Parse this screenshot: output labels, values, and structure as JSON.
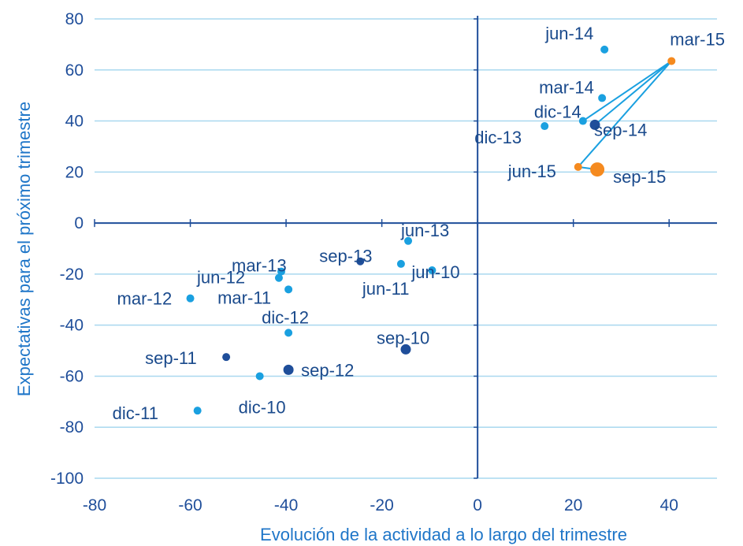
{
  "chart_data": {
    "type": "scatter",
    "xlabel": "Evolución  de la actividad a lo largo del trimestre",
    "ylabel": "Expectativas para el próximo trimestre",
    "xlim": [
      -80,
      50
    ],
    "ylim": [
      -100,
      80
    ],
    "xticks": [
      "-80",
      "-60",
      "-40",
      "-20",
      "0",
      "20",
      "40"
    ],
    "xtick_values": [
      -80,
      -60,
      -40,
      -20,
      0,
      20,
      40
    ],
    "yticks": [
      "80",
      "60",
      "40",
      "20",
      "0",
      "-20",
      "-40",
      "-60",
      "-80",
      "-100"
    ],
    "ytick_values": [
      80,
      60,
      40,
      20,
      0,
      -20,
      -40,
      -60,
      -80,
      -100
    ],
    "grid": "horizontal",
    "colors": {
      "light": "#1aa0e0",
      "dark": "#1f4e9a",
      "orange": "#f58a1f",
      "line": "#1aa0e0",
      "grid": "#a9d8ef",
      "axis": "#1f4e9a"
    },
    "points": [
      {
        "label": "jun-10",
        "x": -9.5,
        "y": -18.5,
        "color": "light"
      },
      {
        "label": "sep-10",
        "x": -15,
        "y": -49.5,
        "color": "dark",
        "large": true
      },
      {
        "label": "dic-10",
        "x": -45.5,
        "y": -60,
        "color": "light"
      },
      {
        "label": "mar-11",
        "x": -39.5,
        "y": -26,
        "color": "light"
      },
      {
        "label": "jun-11",
        "x": -16,
        "y": -16,
        "color": "light"
      },
      {
        "label": "sep-11",
        "x": -52.5,
        "y": -52.5,
        "color": "dark"
      },
      {
        "label": "dic-11",
        "x": -58.5,
        "y": -73.5,
        "color": "light"
      },
      {
        "label": "mar-12",
        "x": -60,
        "y": -29.5,
        "color": "light"
      },
      {
        "label": "jun-12",
        "x": -41.5,
        "y": -21.5,
        "color": "light"
      },
      {
        "label": "sep-12",
        "x": -39.5,
        "y": -57.5,
        "color": "dark",
        "large": true
      },
      {
        "label": "dic-12",
        "x": -39.5,
        "y": -43,
        "color": "light"
      },
      {
        "label": "mar-13",
        "x": -41,
        "y": -19,
        "color": "light"
      },
      {
        "label": "jun-13",
        "x": -14.5,
        "y": -7,
        "color": "light"
      },
      {
        "label": "sep-13",
        "x": -24.5,
        "y": -15,
        "color": "dark"
      },
      {
        "label": "dic-13",
        "x": 14,
        "y": 38,
        "color": "light"
      },
      {
        "label": "mar-14",
        "x": 26,
        "y": 49,
        "color": "light"
      },
      {
        "label": "jun-14",
        "x": 26.5,
        "y": 68,
        "color": "light"
      },
      {
        "label": "sep-14",
        "x": 24.5,
        "y": 38.5,
        "color": "dark",
        "large": true
      },
      {
        "label": "dic-14",
        "x": 22,
        "y": 40,
        "color": "light"
      },
      {
        "label": "mar-15",
        "x": 40.5,
        "y": 63.5,
        "color": "orange"
      },
      {
        "label": "jun-15",
        "x": 21,
        "y": 22,
        "color": "orange"
      },
      {
        "label": "sep-15",
        "x": 25,
        "y": 21,
        "color": "orange",
        "xl": true
      }
    ],
    "connected_path": [
      "dic-14",
      "mar-15",
      "sep-14",
      "mar-15",
      "jun-15",
      "sep-15"
    ]
  }
}
